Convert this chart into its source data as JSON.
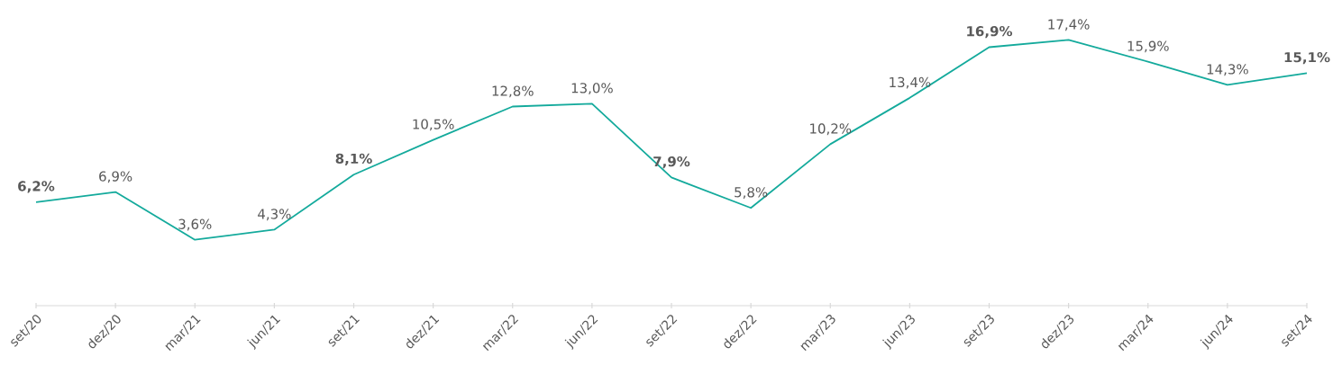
{
  "chart_data": {
    "type": "line",
    "color": "#14aa9c",
    "categories": [
      "set/20",
      "dez/20",
      "mar/21",
      "jun/21",
      "set/21",
      "dez/21",
      "mar/22",
      "jun/22",
      "set/22",
      "dez/22",
      "mar/23",
      "jun/23",
      "set/23",
      "dez/23",
      "mar/24",
      "jun/24",
      "set/24"
    ],
    "values": [
      6.2,
      6.9,
      3.6,
      4.3,
      8.1,
      10.5,
      12.8,
      13.0,
      7.9,
      5.8,
      10.2,
      13.4,
      16.9,
      17.4,
      15.9,
      14.3,
      15.1
    ],
    "value_labels": [
      "**6,2%**",
      "6,9%",
      "3,6%",
      "4,3%",
      "**8,1%**",
      "10,5%",
      "12,8%",
      "13,0%",
      "**7,9%**",
      "5,8%",
      "10,2%",
      "13,4%",
      "**16,9%**",
      "17,4%",
      "15,9%",
      "14,3%",
      "**15,1%**"
    ]
  }
}
